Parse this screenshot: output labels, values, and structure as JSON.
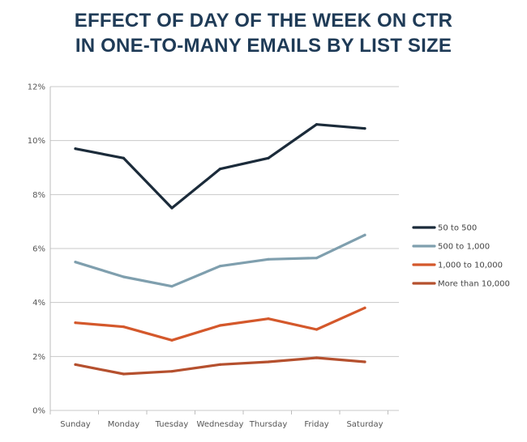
{
  "chart_data": {
    "type": "line",
    "title_lines": [
      "EFFECT OF DAY OF THE WEEK ON CTR",
      "IN ONE-TO-MANY EMAILS BY LIST SIZE"
    ],
    "categories": [
      "Sunday",
      "Monday",
      "Tuesday",
      "Wednesday",
      "Thursday",
      "Friday",
      "Saturday"
    ],
    "y_ticks": [
      "0%",
      "2%",
      "4%",
      "6%",
      "8%",
      "10%",
      "12%"
    ],
    "ylim": [
      0,
      12
    ],
    "grid": true,
    "legend_position": "right",
    "series": [
      {
        "name": "50 to 500",
        "color": "#1b2b3a",
        "values": [
          9.7,
          9.35,
          7.5,
          8.95,
          9.35,
          10.6,
          10.45
        ]
      },
      {
        "name": "500 to 1,000",
        "color": "#7f9fae",
        "values": [
          5.5,
          4.95,
          4.6,
          5.35,
          5.6,
          5.65,
          6.5
        ]
      },
      {
        "name": "1,000 to 10,000",
        "color": "#d4582b",
        "values": [
          3.25,
          3.1,
          2.6,
          3.15,
          3.4,
          3.0,
          3.8
        ]
      },
      {
        "name": "More than 10,000",
        "color": "#b5502e",
        "values": [
          1.7,
          1.35,
          1.45,
          1.7,
          1.8,
          1.95,
          1.8
        ]
      }
    ]
  }
}
